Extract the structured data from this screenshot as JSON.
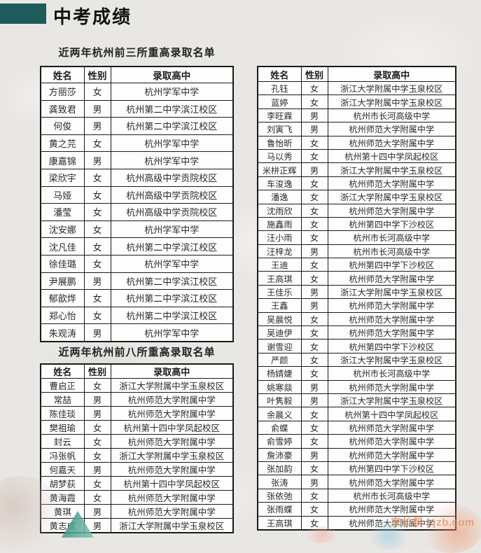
{
  "page": {
    "title": "中考成绩",
    "watermark": "家长帮 | jzb.com"
  },
  "colors": {
    "accent_teal": "#1e5b5a",
    "table_border": "#1a1a1a",
    "background": "#e9e7e4"
  },
  "sections": [
    {
      "heading": "近两年杭州前三所重高录取名单",
      "columns": [
        "姓名",
        "性别",
        "录取高中"
      ],
      "rows": [
        [
          "方丽莎",
          "女",
          "杭州学军中学"
        ],
        [
          "龚致君",
          "男",
          "杭州第二中学滨江校区"
        ],
        [
          "何俊",
          "男",
          "杭州第二中学滨江校区"
        ],
        [
          "黄之芫",
          "女",
          "杭州学军中学"
        ],
        [
          "康嘉锦",
          "男",
          "杭州学军中学"
        ],
        [
          "梁欣宇",
          "女",
          "杭州高级中学贡院校区"
        ],
        [
          "马娅",
          "女",
          "杭州高级中学贡院校区"
        ],
        [
          "潘莹",
          "女",
          "杭州高级中学贡院校区"
        ],
        [
          "沈安娜",
          "女",
          "杭州学军中学"
        ],
        [
          "沈凡佳",
          "女",
          "杭州第二中学滨江校区"
        ],
        [
          "徐佳璐",
          "女",
          "杭州学军中学"
        ],
        [
          "尹展鹏",
          "男",
          "杭州第二中学滨江校区"
        ],
        [
          "郁歆烨",
          "女",
          "杭州第二中学滨江校区"
        ],
        [
          "郑心怡",
          "女",
          "杭州第二中学滨江校区"
        ],
        [
          "朱观涛",
          "男",
          "杭州学军中学"
        ]
      ]
    },
    {
      "heading": "近两年杭州前八所重高录取名单",
      "columns": [
        "姓名",
        "性别",
        "录取高中"
      ],
      "rows": [
        [
          "曹启正",
          "女",
          "浙江大学附属中学玉泉校区"
        ],
        [
          "常喆",
          "男",
          "杭州师范大学附属中学"
        ],
        [
          "陈佳琰",
          "男",
          "杭州师范大学附属中学"
        ],
        [
          "樊祖瑜",
          "女",
          "杭州第十四中学凤起校区"
        ],
        [
          "封云",
          "女",
          "杭州师范大学附属中学"
        ],
        [
          "冯张帆",
          "女",
          "浙江大学附属中学玉泉校区"
        ],
        [
          "何嘉天",
          "男",
          "杭州师范大学附属中学"
        ],
        [
          "胡梦荻",
          "女",
          "杭州第十四中学凤起校区"
        ],
        [
          "黄海霞",
          "女",
          "杭州师范大学附属中学"
        ],
        [
          "黄琪",
          "男",
          "杭州师范大学附属中学"
        ],
        [
          "黄志成",
          "男",
          "浙江大学附属中学玉泉校区"
        ]
      ]
    },
    {
      "heading": "",
      "columns": [
        "姓名",
        "性别",
        "录取高中"
      ],
      "rows": [
        [
          "孔钰",
          "女",
          "浙江大学附属中学玉泉校区"
        ],
        [
          "蓝婷",
          "女",
          "浙江大学附属中学玉泉校区"
        ],
        [
          "李旺霖",
          "男",
          "杭州市长河高级中学"
        ],
        [
          "刘寅飞",
          "男",
          "杭州师范大学附属中学"
        ],
        [
          "鲁怡昕",
          "女",
          "杭州师范大学附属中学"
        ],
        [
          "马以秀",
          "女",
          "杭州第十四中学凤起校区"
        ],
        [
          "米栟正辉",
          "男",
          "浙江大学附属中学玉泉校区"
        ],
        [
          "车浚逸",
          "女",
          "杭州师范大学附属中学"
        ],
        [
          "潘逸",
          "女",
          "浙江大学附属中学玉泉校区"
        ],
        [
          "沈雨欣",
          "女",
          "杭州师范大学附属中学"
        ],
        [
          "施鑫雨",
          "女",
          "杭州第四中学下沙校区"
        ],
        [
          "汪小雨",
          "女",
          "杭州市长河高级中学"
        ],
        [
          "汪梓龙",
          "男",
          "杭州市长河高级中学"
        ],
        [
          "王迪",
          "女",
          "杭州第四中学下沙校区"
        ],
        [
          "王高琪",
          "女",
          "杭州师范大学附属中学"
        ],
        [
          "王佳乐",
          "男",
          "浙江大学附属中学玉泉校区"
        ],
        [
          "王鑫",
          "男",
          "杭州师范大学附属中学"
        ],
        [
          "吴晨悦",
          "女",
          "杭州师范大学附属中学"
        ],
        [
          "吴迪伊",
          "女",
          "杭州师范大学附属中学"
        ],
        [
          "谢雪迎",
          "女",
          "杭州第四中学下沙校区"
        ],
        [
          "严颜",
          "女",
          "浙江大学附属中学玉泉校区"
        ],
        [
          "杨婧婕",
          "女",
          "杭州市长河高级中学"
        ],
        [
          "姚寒燚",
          "男",
          "杭州师范大学附属中学"
        ],
        [
          "叶隽毅",
          "男",
          "浙江大学附属中学玉泉校区"
        ],
        [
          "余晨义",
          "女",
          "杭州第十四中学凤起校区"
        ],
        [
          "俞蝶",
          "女",
          "杭州师范大学附属中学"
        ],
        [
          "俞雪婷",
          "女",
          "杭州师范大学附属中学"
        ],
        [
          "詹沛豪",
          "男",
          "杭州师范大学附属中学"
        ],
        [
          "张加韵",
          "女",
          "杭州第四中学下沙校区"
        ],
        [
          "张涛",
          "男",
          "杭州师范大学附属中学"
        ],
        [
          "张依弛",
          "女",
          "杭州市长河高级中学"
        ],
        [
          "张雨蝶",
          "女",
          "杭州师范大学附属中学"
        ],
        [
          "王高琪",
          "女",
          "杭州师范大学附属中学"
        ]
      ]
    }
  ]
}
